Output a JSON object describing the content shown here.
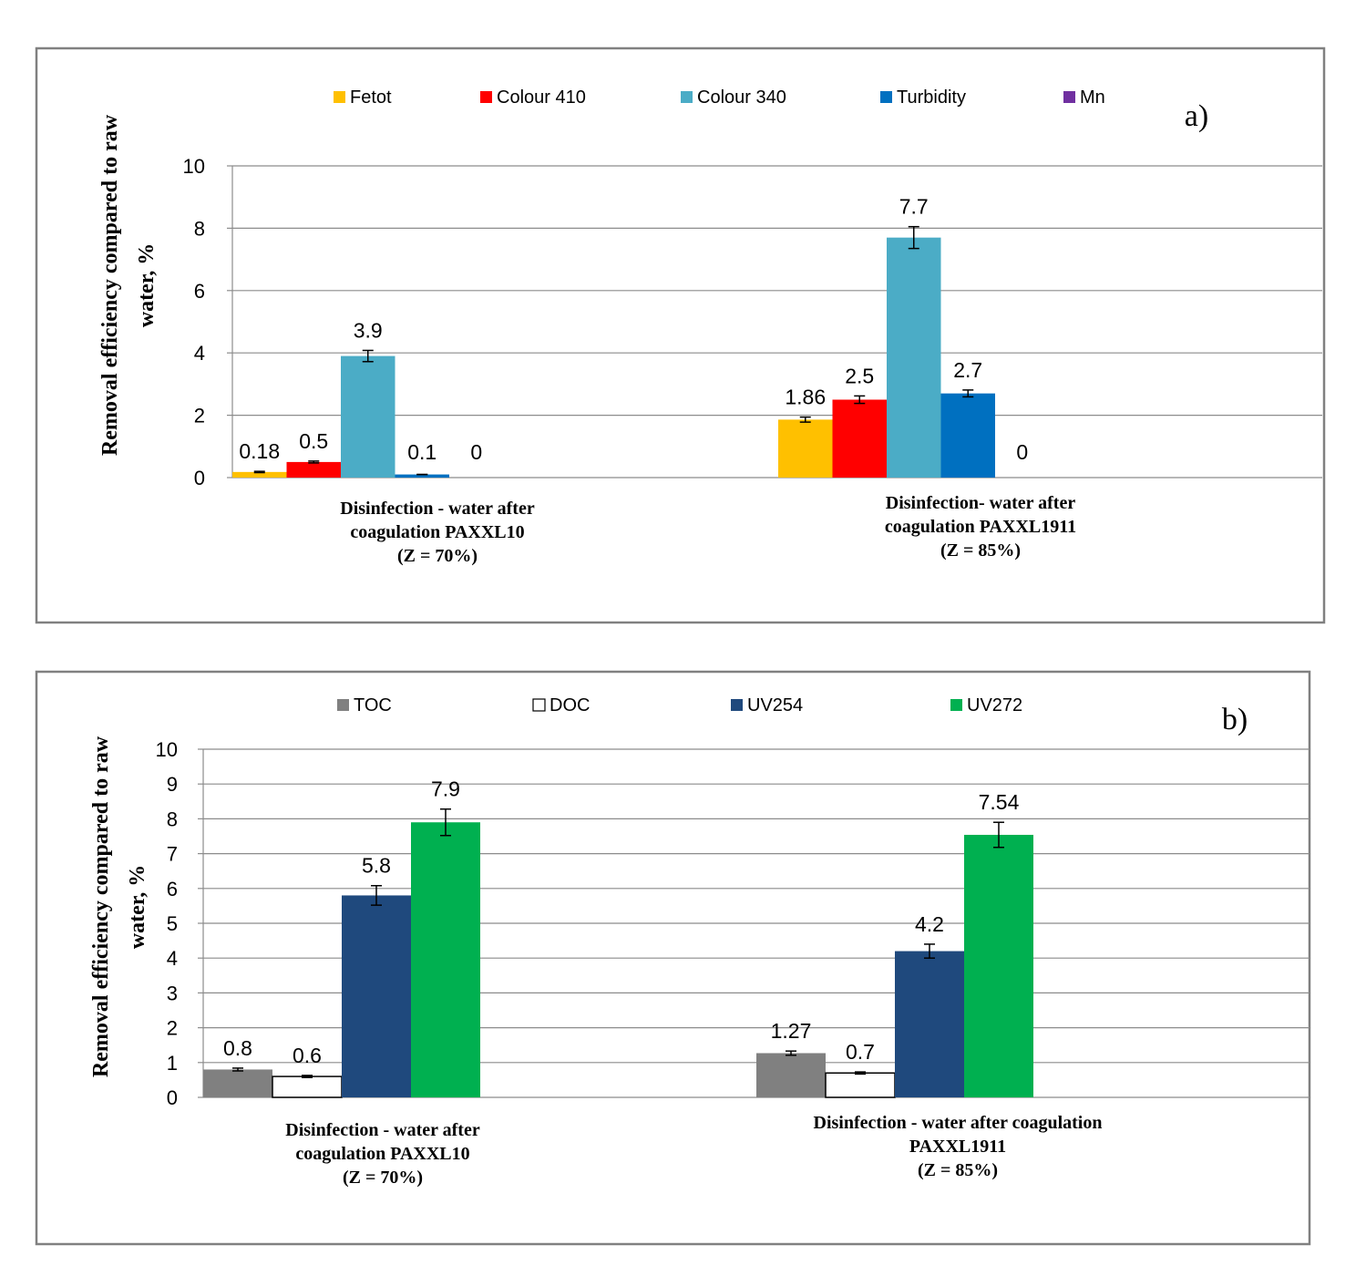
{
  "chart_data": [
    {
      "type": "bar",
      "panel_label": "a)",
      "ylabel_lines": [
        "Removal efficiency compared to raw",
        "water, %"
      ],
      "ylim": [
        0,
        10
      ],
      "yticks": [
        0,
        2,
        4,
        6,
        8,
        10
      ],
      "grid": true,
      "legend_position": "top",
      "categories": [
        {
          "lines": [
            "Disinfection - water after",
            "coagulation PAXXL10",
            "(Z = 70%)"
          ]
        },
        {
          "lines": [
            "Disinfection- water after",
            "coagulation PAXXL1911",
            "(Z = 85%)"
          ]
        }
      ],
      "series": [
        {
          "name": "Fetot",
          "color": "#FFC000",
          "values": [
            0.18,
            1.86
          ],
          "labels": [
            "0.18",
            "1.86"
          ],
          "errors": [
            0.02,
            0.08
          ]
        },
        {
          "name": "Colour 410",
          "color": "#FF0000",
          "values": [
            0.5,
            2.5
          ],
          "labels": [
            "0.5",
            "2.5"
          ],
          "errors": [
            0.03,
            0.12
          ]
        },
        {
          "name": "Colour 340",
          "color": "#4BACC6",
          "values": [
            3.9,
            7.7
          ],
          "labels": [
            "3.9",
            "7.7"
          ],
          "errors": [
            0.18,
            0.35
          ]
        },
        {
          "name": "Turbidity",
          "color": "#0070C0",
          "values": [
            0.1,
            2.7
          ],
          "labels": [
            "0.1",
            "2.7"
          ],
          "errors": [
            0.0,
            0.11
          ]
        },
        {
          "name": "Mn",
          "color": "#7030A0",
          "values": [
            0,
            0
          ],
          "labels": [
            "0",
            "0"
          ],
          "errors": [
            0,
            0
          ]
        }
      ]
    },
    {
      "type": "bar",
      "panel_label": "b)",
      "ylabel_lines": [
        "Removal efficiency  compared to raw",
        "water, %"
      ],
      "ylim": [
        0,
        10
      ],
      "yticks": [
        0,
        1,
        2,
        3,
        4,
        5,
        6,
        7,
        8,
        9,
        10
      ],
      "grid": true,
      "legend_position": "top",
      "categories": [
        {
          "lines": [
            "Disinfection - water after",
            "coagulation PAXXL10",
            "(Z = 70%)"
          ]
        },
        {
          "lines": [
            "Disinfection - water after coagulation",
            "PAXXL1911",
            "(Z = 85%)"
          ]
        }
      ],
      "series": [
        {
          "name": "TOC",
          "color": "#808080",
          "values": [
            0.8,
            1.27
          ],
          "labels": [
            "0.8",
            "1.27"
          ],
          "errors": [
            0.04,
            0.06
          ]
        },
        {
          "name": "DOC",
          "color": "#FFFFFF",
          "values": [
            0.6,
            0.7
          ],
          "labels": [
            "0.6",
            "0.7"
          ],
          "errors": [
            0.03,
            0.03
          ]
        },
        {
          "name": "UV254",
          "color": "#1F497D",
          "values": [
            5.8,
            4.2
          ],
          "labels": [
            "5.8",
            "4.2"
          ],
          "errors": [
            0.28,
            0.2
          ]
        },
        {
          "name": "UV272",
          "color": "#00B050",
          "values": [
            7.9,
            7.54
          ],
          "labels": [
            "7.9",
            "7.54"
          ],
          "errors": [
            0.38,
            0.36
          ]
        }
      ]
    }
  ]
}
